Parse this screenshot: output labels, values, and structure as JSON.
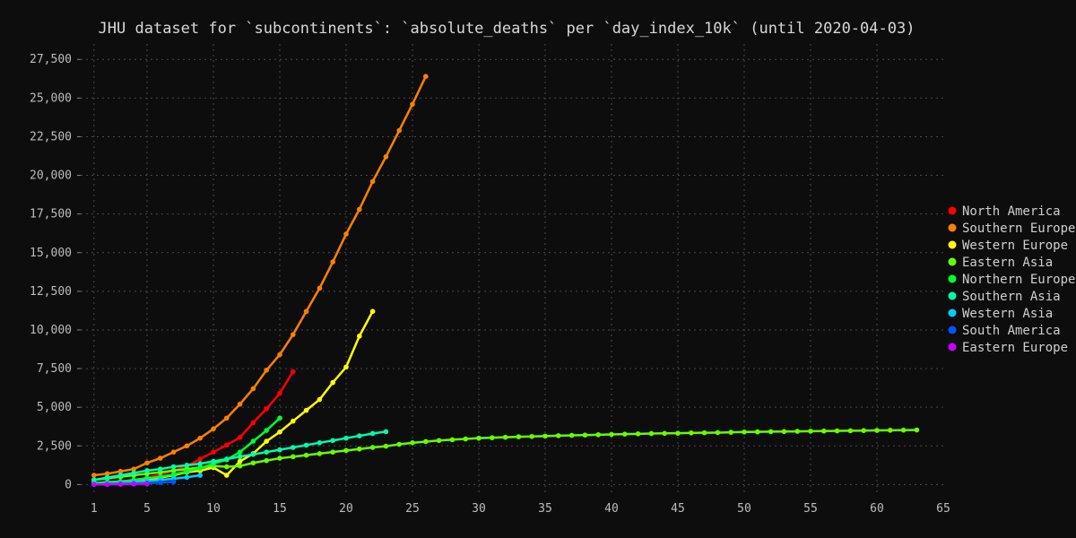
{
  "chart_data": {
    "type": "line",
    "title": "JHU dataset for `subcontinents`: `absolute_deaths` per `day_index_10k` (until 2020-04-03)",
    "xlabel": "",
    "ylabel": "",
    "xlim": [
      0,
      65
    ],
    "ylim": [
      -500,
      28500
    ],
    "grid": true,
    "legend_position": "right",
    "x_ticks": [
      1,
      5,
      10,
      15,
      20,
      25,
      30,
      35,
      40,
      45,
      50,
      55,
      60,
      65
    ],
    "y_ticks": [
      0,
      2500,
      5000,
      7500,
      10000,
      12500,
      15000,
      17500,
      20000,
      22500,
      25000,
      27500
    ],
    "y_tick_labels": [
      "0",
      "2,500",
      "5,000",
      "7,500",
      "10,000",
      "12,500",
      "15,000",
      "17,500",
      "20,000",
      "22,500",
      "25,000",
      "27,500"
    ],
    "series": [
      {
        "name": "North America",
        "color": "#ff0000",
        "x": [
          1,
          2,
          3,
          4,
          5,
          6,
          7,
          8,
          9,
          10,
          11,
          12,
          13,
          14,
          15,
          16
        ],
        "y": [
          100,
          150,
          200,
          300,
          450,
          650,
          900,
          1200,
          1650,
          2100,
          2550,
          3050,
          4000,
          4900,
          5900,
          7300
        ]
      },
      {
        "name": "Southern Europe",
        "color": "#ff8000",
        "x": [
          1,
          2,
          3,
          4,
          5,
          6,
          7,
          8,
          9,
          10,
          11,
          12,
          13,
          14,
          15,
          16,
          17,
          18,
          19,
          20,
          21,
          22,
          23,
          24,
          25,
          26
        ],
        "y": [
          600,
          700,
          850,
          1000,
          1400,
          1700,
          2100,
          2500,
          3000,
          3600,
          4300,
          5200,
          6200,
          7400,
          8400,
          9700,
          11200,
          12700,
          14400,
          16200,
          17800,
          19600,
          21200,
          22900,
          24600,
          26400
        ]
      },
      {
        "name": "Western Europe",
        "color": "#ffff00",
        "x": [
          1,
          2,
          3,
          4,
          5,
          6,
          7,
          8,
          9,
          10,
          11,
          12,
          13,
          14,
          15,
          16,
          17,
          18,
          19,
          20,
          21,
          22
        ],
        "y": [
          50,
          100,
          150,
          200,
          300,
          450,
          600,
          800,
          900,
          1100,
          600,
          1500,
          2000,
          2800,
          3400,
          4100,
          4800,
          5500,
          6600,
          7600,
          9600,
          11200
        ]
      },
      {
        "name": "Eastern Asia",
        "color": "#66ff00",
        "x": [
          1,
          2,
          3,
          4,
          5,
          6,
          7,
          8,
          9,
          10,
          11,
          12,
          13,
          14,
          15,
          16,
          17,
          18,
          19,
          20,
          21,
          22,
          23,
          24,
          25,
          26,
          27,
          28,
          29,
          30,
          31,
          32,
          33,
          34,
          35,
          36,
          37,
          38,
          39,
          40,
          41,
          42,
          43,
          44,
          45,
          46,
          47,
          48,
          49,
          50,
          51,
          52,
          53,
          54,
          55,
          56,
          57,
          58,
          59,
          60,
          61,
          62,
          63
        ],
        "y": [
          300,
          400,
          500,
          600,
          700,
          800,
          900,
          1000,
          1100,
          1200,
          1150,
          1200,
          1400,
          1550,
          1700,
          1800,
          1900,
          2000,
          2100,
          2200,
          2300,
          2400,
          2480,
          2600,
          2700,
          2780,
          2850,
          2900,
          2950,
          3000,
          3030,
          3060,
          3090,
          3110,
          3130,
          3160,
          3180,
          3200,
          3220,
          3240,
          3260,
          3280,
          3300,
          3310,
          3320,
          3340,
          3350,
          3360,
          3380,
          3400,
          3410,
          3420,
          3430,
          3440,
          3450,
          3460,
          3470,
          3480,
          3490,
          3500,
          3510,
          3520,
          3530
        ]
      },
      {
        "name": "Northern Europe",
        "color": "#00ff33",
        "x": [
          1,
          2,
          3,
          4,
          5,
          6,
          7,
          8,
          9,
          10,
          11,
          12,
          13,
          14,
          15
        ],
        "y": [
          100,
          150,
          200,
          300,
          400,
          500,
          650,
          850,
          1050,
          1350,
          1600,
          2100,
          2800,
          3500,
          4300
        ]
      },
      {
        "name": "Southern Asia",
        "color": "#00ffaa",
        "x": [
          1,
          2,
          3,
          4,
          5,
          6,
          7,
          8,
          9,
          10,
          11,
          12,
          13,
          14,
          15,
          16,
          17,
          18,
          19,
          20,
          21,
          22,
          23
        ],
        "y": [
          300,
          450,
          600,
          750,
          900,
          1000,
          1150,
          1250,
          1350,
          1500,
          1650,
          1800,
          1950,
          2100,
          2250,
          2400,
          2550,
          2700,
          2850,
          3000,
          3150,
          3300,
          3420
        ]
      },
      {
        "name": "Western Asia",
        "color": "#00ccff",
        "x": [
          1,
          2,
          3,
          4,
          5,
          6,
          7,
          8,
          9
        ],
        "y": [
          50,
          80,
          120,
          170,
          230,
          300,
          380,
          470,
          600
        ]
      },
      {
        "name": "South America",
        "color": "#0055ff",
        "x": [
          1,
          2,
          3,
          4,
          5,
          6,
          7
        ],
        "y": [
          10,
          20,
          40,
          60,
          90,
          130,
          180
        ]
      },
      {
        "name": "Eastern Europe",
        "color": "#cc00ff",
        "x": [
          1,
          2,
          3,
          4,
          5
        ],
        "y": [
          5,
          10,
          20,
          35,
          50
        ]
      }
    ]
  }
}
